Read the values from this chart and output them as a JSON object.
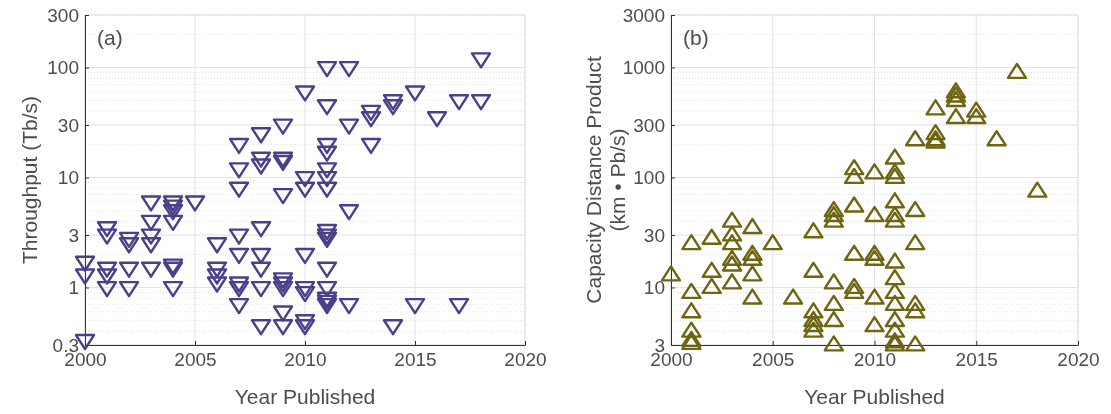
{
  "chart_data": [
    {
      "type": "scatter",
      "xlabel": "Year Published",
      "ylabel": "Throughput (Tb/s)",
      "annotations": [
        "(a)"
      ],
      "log": "y",
      "grid": true,
      "marker": "triangle-down",
      "xlim": [
        2000,
        2020
      ],
      "xticks": [
        2000,
        2005,
        2010,
        2015,
        2020
      ],
      "ylim": [
        0.3,
        300
      ],
      "yticks": [
        0.3,
        1,
        3,
        10,
        30,
        100,
        300
      ],
      "series": [
        {
          "color": "#4b3f8c",
          "x": [
            2000,
            2000,
            2000,
            2001,
            2001,
            2001,
            2001,
            2001,
            2002,
            2002,
            2002,
            2002,
            2003,
            2003,
            2003,
            2003,
            2003,
            2004,
            2004,
            2004,
            2004,
            2004,
            2004,
            2004,
            2005,
            2006,
            2006,
            2006,
            2006,
            2007,
            2007,
            2007,
            2007,
            2007,
            2007,
            2007,
            2007,
            2008,
            2008,
            2008,
            2008,
            2008,
            2008,
            2008,
            2008,
            2009,
            2009,
            2009,
            2009,
            2009,
            2009,
            2009,
            2009,
            2009,
            2010,
            2010,
            2010,
            2010,
            2010,
            2010,
            2010,
            2010,
            2011,
            2011,
            2011,
            2011,
            2011,
            2011,
            2011,
            2011,
            2011,
            2011,
            2011,
            2011,
            2011,
            2011,
            2011,
            2012,
            2012,
            2012,
            2012,
            2013,
            2013,
            2013,
            2014,
            2014,
            2014,
            2015,
            2015,
            2016,
            2017,
            2017,
            2018,
            2018
          ],
          "values": [
            1.7,
            1.3,
            0.33,
            3.5,
            3.0,
            1.5,
            1.3,
            1.0,
            2.8,
            2.5,
            1.5,
            1.0,
            6,
            4,
            3,
            2.5,
            1.5,
            6,
            5.5,
            5,
            4,
            1.6,
            1.5,
            1.0,
            6,
            2.5,
            1.5,
            1.3,
            1.1,
            20,
            12,
            8,
            3,
            2,
            1.1,
            1.0,
            0.7,
            25,
            15,
            13,
            3.5,
            2,
            1.5,
            1.0,
            0.45,
            30,
            15,
            14,
            7,
            1.2,
            1.1,
            1.0,
            0.6,
            0.45,
            60,
            10,
            8,
            2,
            1.0,
            0.9,
            0.5,
            0.45,
            100,
            45,
            20,
            17,
            12,
            10,
            8,
            3.3,
            3,
            2.8,
            1.5,
            1.0,
            0.8,
            0.75,
            0.7,
            100,
            30,
            5,
            0.7,
            40,
            35,
            20,
            50,
            45,
            0.45,
            60,
            0.7,
            35,
            50,
            0.7,
            120,
            50
          ]
        }
      ]
    },
    {
      "type": "scatter",
      "xlabel": "Year Published",
      "ylabel": "Capacity Distance Product\n(km • Pb/s)",
      "annotations": [
        "(b)"
      ],
      "log": "y",
      "grid": true,
      "marker": "triangle",
      "xlim": [
        2000,
        2020
      ],
      "xticks": [
        2000,
        2005,
        2010,
        2015,
        2020
      ],
      "ylim": [
        3,
        3000
      ],
      "yticks": [
        3,
        10,
        30,
        100,
        300,
        1000,
        3000
      ],
      "series": [
        {
          "color": "#6e6510",
          "x": [
            2000,
            2001,
            2001,
            2001,
            2001,
            2001,
            2001,
            2002,
            2002,
            2002,
            2003,
            2003,
            2003,
            2003,
            2003,
            2003,
            2004,
            2004,
            2004,
            2004,
            2004,
            2005,
            2006,
            2007,
            2007,
            2007,
            2007,
            2007,
            2007,
            2008,
            2008,
            2008,
            2008,
            2008,
            2008,
            2008,
            2009,
            2009,
            2009,
            2009,
            2009,
            2009,
            2010,
            2010,
            2010,
            2010,
            2010,
            2010,
            2011,
            2011,
            2011,
            2011,
            2011,
            2011,
            2011,
            2011,
            2011,
            2011,
            2011,
            2011,
            2011,
            2011,
            2012,
            2012,
            2012,
            2012,
            2012,
            2012,
            2013,
            2013,
            2013,
            2013,
            2014,
            2014,
            2014,
            2014,
            2015,
            2015,
            2016,
            2017,
            2018
          ],
          "values": [
            13,
            25,
            9,
            6,
            4,
            3.3,
            3.1,
            28,
            14,
            10,
            40,
            30,
            25,
            18,
            16,
            11,
            35,
            20,
            18,
            13,
            8,
            25,
            8,
            32,
            14,
            6,
            5,
            4.5,
            4,
            50,
            45,
            40,
            11,
            7,
            5,
            3,
            120,
            100,
            55,
            20,
            10,
            9,
            110,
            45,
            20,
            18,
            8,
            4.5,
            150,
            110,
            100,
            60,
            45,
            40,
            17,
            12,
            9,
            7,
            5,
            4,
            3.2,
            3,
            220,
            50,
            25,
            7,
            6,
            3,
            420,
            250,
            220,
            210,
            600,
            550,
            500,
            350,
            400,
            350,
            220,
            900,
            75
          ]
        }
      ]
    }
  ]
}
